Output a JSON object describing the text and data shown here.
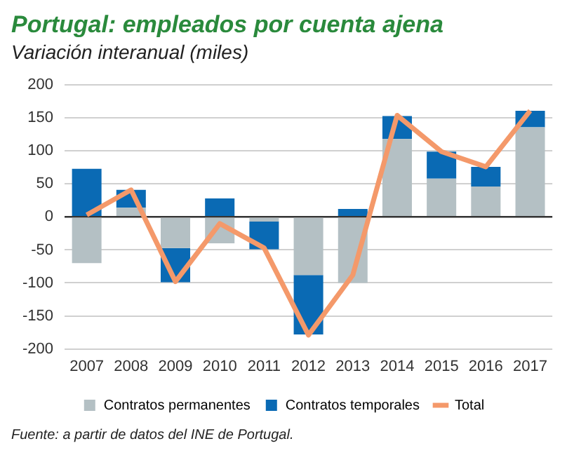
{
  "chart_data": {
    "type": "bar",
    "title": "Portugal: empleados por cuenta ajena",
    "subtitle": "Variación interanual (miles)",
    "categories": [
      "2007",
      "2008",
      "2009",
      "2010",
      "2011",
      "2012",
      "2013",
      "2014",
      "2015",
      "2016",
      "2017"
    ],
    "stacked": true,
    "series": [
      {
        "name": "Contratos permanentes",
        "color": "#b4c0c4",
        "values": [
          -70,
          14,
          -47,
          -40,
          -7,
          -88,
          -100,
          118,
          58,
          46,
          136
        ]
      },
      {
        "name": "Contratos temporales",
        "color": "#0a6ab4",
        "values": [
          73,
          27,
          -52,
          28,
          -42,
          -90,
          12,
          35,
          41,
          30,
          25
        ]
      },
      {
        "name": "Total",
        "type": "line",
        "color": "#f4996a",
        "values": [
          3,
          41,
          -98,
          -10,
          -47,
          -179,
          -88,
          154,
          99,
          76,
          161
        ]
      }
    ],
    "ylim": [
      -200,
      200
    ],
    "yticks": [
      -200,
      -150,
      -100,
      -50,
      0,
      50,
      100,
      150,
      200
    ],
    "grid": "y",
    "legend": "bottom",
    "marker": "none",
    "annotations": [
      "Fuente: a partir de datos del INE de Portugal."
    ]
  }
}
